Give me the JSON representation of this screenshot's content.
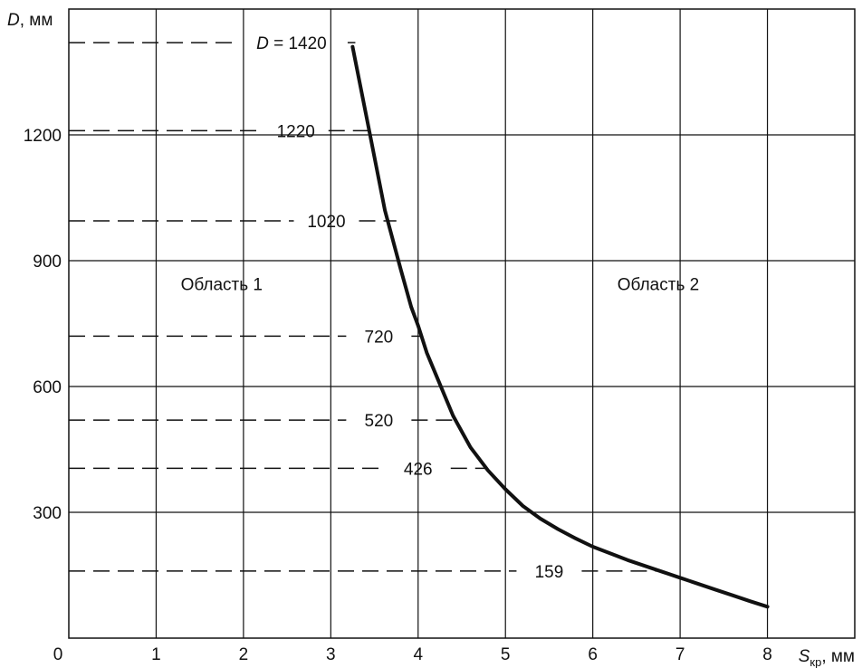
{
  "chart_data": {
    "type": "line",
    "x_axis": {
      "label_main": "S",
      "label_sub": "кр",
      "label_unit": ", мм",
      "range": [
        0,
        9
      ],
      "ticks": [
        {
          "value": 0,
          "label": "0"
        },
        {
          "value": 1,
          "label": "1"
        },
        {
          "value": 2,
          "label": "2"
        },
        {
          "value": 3,
          "label": "3"
        },
        {
          "value": 4,
          "label": "4"
        },
        {
          "value": 5,
          "label": "5"
        },
        {
          "value": 6,
          "label": "6"
        },
        {
          "value": 7,
          "label": "7"
        },
        {
          "value": 8,
          "label": "8"
        }
      ]
    },
    "y_axis": {
      "label_main": "D",
      "label_unit": ", мм",
      "range": [
        0,
        1500
      ],
      "ticks": [
        {
          "value": 300,
          "label": "300"
        },
        {
          "value": 600,
          "label": "600"
        },
        {
          "value": 900,
          "label": "900"
        },
        {
          "value": 1200,
          "label": "1200"
        }
      ]
    },
    "grid": true,
    "grid_x": [
      1,
      2,
      3,
      4,
      5,
      6,
      7,
      8
    ],
    "grid_y": [
      300,
      600,
      900,
      1200
    ],
    "series": [
      {
        "x": [
          3.25,
          3.45,
          3.62,
          3.8,
          3.92,
          4.0,
          4.1,
          4.22,
          4.4,
          4.6,
          4.8,
          5.0,
          5.2,
          5.4,
          5.6,
          5.8,
          6.0,
          6.2,
          6.4,
          6.6,
          6.8,
          7.0,
          7.2,
          7.4,
          7.6,
          7.8,
          8.0
        ],
        "y": [
          1410,
          1200,
          1020,
          880,
          790,
          745,
          680,
          620,
          530,
          455,
          400,
          355,
          315,
          285,
          260,
          238,
          218,
          202,
          186,
          172,
          158,
          144,
          130,
          116,
          102,
          88,
          75
        ],
        "color": "#111111"
      }
    ],
    "reference_lines": [
      {
        "y": 1420,
        "label": "D = 1420",
        "x_end": 3.25,
        "label_x": 2.55
      },
      {
        "y": 1210,
        "label": "1220",
        "x_end": 3.45,
        "label_x": 2.6
      },
      {
        "y": 995,
        "label": "1020",
        "x_end": 3.72,
        "label_x": 2.95
      },
      {
        "y": 720,
        "label": "720",
        "x_end": 4.0,
        "label_x": 3.55
      },
      {
        "y": 520,
        "label": "520",
        "x_end": 4.45,
        "label_x": 3.55
      },
      {
        "y": 405,
        "label": "426",
        "x_end": 4.75,
        "label_x": 4.0
      },
      {
        "y": 160,
        "label": "159",
        "x_end": 6.7,
        "label_x": 5.5
      }
    ],
    "annotations": [
      {
        "text": "Область 1",
        "x": 1.75,
        "y": 830
      },
      {
        "text": "Область 2",
        "x": 6.75,
        "y": 830
      }
    ]
  }
}
